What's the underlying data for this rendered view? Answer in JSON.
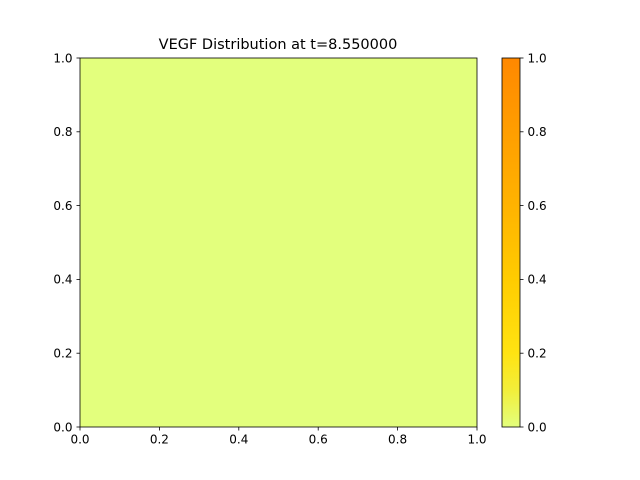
{
  "chart_data": {
    "type": "heatmap",
    "title": "VEGF Distribution at t=8.550000",
    "xlabel": "",
    "ylabel": "",
    "xlim": [
      0.0,
      1.0
    ],
    "ylim": [
      0.0,
      1.0
    ],
    "x_ticks": [
      "0.0",
      "0.2",
      "0.4",
      "0.6",
      "0.8",
      "1.0"
    ],
    "y_ticks": [
      "0.0",
      "0.2",
      "0.4",
      "0.6",
      "0.8",
      "1.0"
    ],
    "grid": false,
    "field_value": 0.0,
    "field_color": "#e3ff7d",
    "colorbar": {
      "range": [
        0.0,
        1.0
      ],
      "ticks": [
        "0.0",
        "0.2",
        "0.4",
        "0.6",
        "0.8",
        "1.0"
      ],
      "colormap": [
        {
          "value": 0.0,
          "color": "#e3ff7d"
        },
        {
          "value": 0.1,
          "color": "#f2ee3a"
        },
        {
          "value": 0.2,
          "color": "#ffe312"
        },
        {
          "value": 0.4,
          "color": "#ffcc00"
        },
        {
          "value": 0.6,
          "color": "#ffb300"
        },
        {
          "value": 0.8,
          "color": "#ff9e00"
        },
        {
          "value": 1.0,
          "color": "#ff8800"
        }
      ]
    }
  }
}
